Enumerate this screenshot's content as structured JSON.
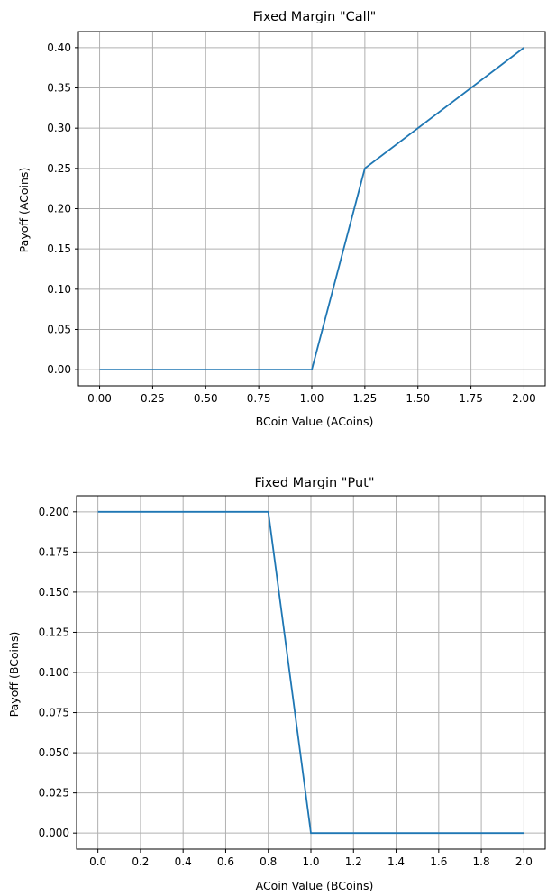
{
  "chart_data": [
    {
      "type": "line",
      "title": "Fixed Margin \"Call\"",
      "xlabel": "BCoin Value (ACoins)",
      "ylabel": "Payoff (ACoins)",
      "xlim": [
        -0.1,
        2.1
      ],
      "ylim": [
        -0.02,
        0.42
      ],
      "xticks": [
        0.0,
        0.25,
        0.5,
        0.75,
        1.0,
        1.25,
        1.5,
        1.75,
        2.0
      ],
      "xtick_labels": [
        "0.00",
        "0.25",
        "0.50",
        "0.75",
        "1.00",
        "1.25",
        "1.50",
        "1.75",
        "2.00"
      ],
      "yticks": [
        0.0,
        0.05,
        0.1,
        0.15,
        0.2,
        0.25,
        0.3,
        0.35,
        0.4
      ],
      "ytick_labels": [
        "0.00",
        "0.05",
        "0.10",
        "0.15",
        "0.20",
        "0.25",
        "0.30",
        "0.35",
        "0.40"
      ],
      "grid": true,
      "series": [
        {
          "color": "#1f77b4",
          "x": [
            0.0,
            1.0,
            1.25,
            2.0
          ],
          "y": [
            0.0,
            0.0,
            0.25,
            0.4
          ]
        }
      ]
    },
    {
      "type": "line",
      "title": "Fixed Margin \"Put\"",
      "xlabel": "ACoin Value (BCoins)",
      "ylabel": "Payoff (BCoins)",
      "xlim": [
        -0.1,
        2.1
      ],
      "ylim": [
        -0.01,
        0.21
      ],
      "xticks": [
        0.0,
        0.2,
        0.4,
        0.6,
        0.8,
        1.0,
        1.2,
        1.4,
        1.6,
        1.8,
        2.0
      ],
      "xtick_labels": [
        "0.0",
        "0.2",
        "0.4",
        "0.6",
        "0.8",
        "1.0",
        "1.2",
        "1.4",
        "1.6",
        "1.8",
        "2.0"
      ],
      "yticks": [
        0.0,
        0.025,
        0.05,
        0.075,
        0.1,
        0.125,
        0.15,
        0.175,
        0.2
      ],
      "ytick_labels": [
        "0.000",
        "0.025",
        "0.050",
        "0.075",
        "0.100",
        "0.125",
        "0.150",
        "0.175",
        "0.200"
      ],
      "grid": true,
      "series": [
        {
          "color": "#1f77b4",
          "x": [
            0.0,
            0.8,
            1.0,
            2.0
          ],
          "y": [
            0.2,
            0.2,
            0.0,
            0.0
          ]
        }
      ]
    }
  ]
}
